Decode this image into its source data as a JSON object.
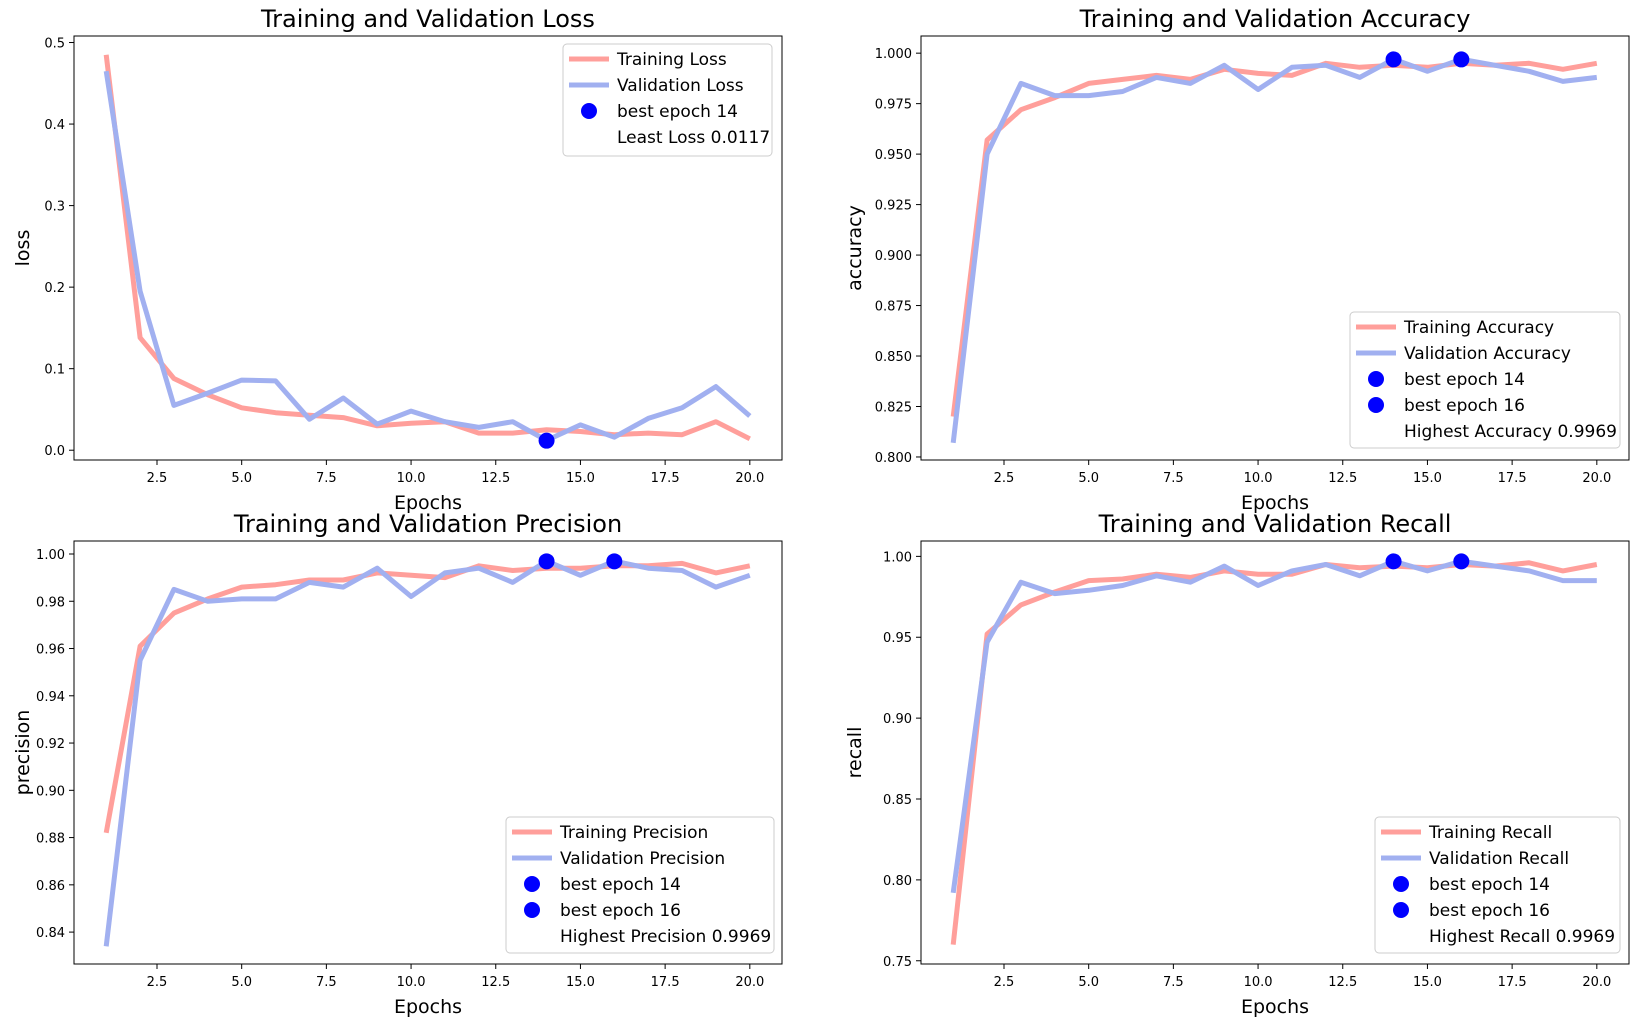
{
  "colors": {
    "training": "#ff9f9b",
    "validation": "#a1b0f0",
    "best": "#0000ff",
    "axes": "#000000"
  },
  "chart_data": [
    {
      "type": "line",
      "title": "Training and Validation Loss",
      "xlabel": "Epochs",
      "ylabel": "loss",
      "xlim": [
        0.05,
        20.95
      ],
      "ylim": [
        -0.012,
        0.508
      ],
      "xticks": [
        2.5,
        5.0,
        7.5,
        10.0,
        12.5,
        15.0,
        17.5,
        20.0
      ],
      "xtick_labels": [
        "2.5",
        "5.0",
        "7.5",
        "10.0",
        "12.5",
        "15.0",
        "17.5",
        "20.0"
      ],
      "yticks": [
        0.0,
        0.1,
        0.2,
        0.3,
        0.4,
        0.5
      ],
      "ytick_labels": [
        "0.0",
        "0.1",
        "0.2",
        "0.3",
        "0.4",
        "0.5"
      ],
      "x": [
        1,
        2,
        3,
        4,
        5,
        6,
        7,
        8,
        9,
        10,
        11,
        12,
        13,
        14,
        15,
        16,
        17,
        18,
        19,
        20
      ],
      "series": [
        {
          "name": "Training Loss",
          "values": [
            0.485,
            0.138,
            0.088,
            0.068,
            0.052,
            0.046,
            0.043,
            0.04,
            0.03,
            0.033,
            0.035,
            0.021,
            0.021,
            0.025,
            0.023,
            0.019,
            0.021,
            0.019,
            0.035,
            0.014
          ]
        },
        {
          "name": "Validation Loss",
          "values": [
            0.465,
            0.195,
            0.055,
            0.07,
            0.086,
            0.085,
            0.038,
            0.064,
            0.032,
            0.048,
            0.035,
            0.028,
            0.035,
            0.012,
            0.031,
            0.016,
            0.039,
            0.052,
            0.078,
            0.042
          ]
        }
      ],
      "points": [
        {
          "name": "best epoch 14",
          "x": 14,
          "y": 0.0117
        }
      ],
      "legend": {
        "placement": "top-right",
        "entries": [
          "Training Loss",
          "Validation Loss",
          "best epoch 14",
          "Least Loss 0.0117"
        ]
      }
    },
    {
      "type": "line",
      "title": "Training and Validation Accuracy",
      "xlabel": "Epochs",
      "ylabel": "accuracy",
      "xlim": [
        0.05,
        20.95
      ],
      "ylim": [
        0.7985,
        1.0085
      ],
      "xticks": [
        2.5,
        5.0,
        7.5,
        10.0,
        12.5,
        15.0,
        17.5,
        20.0
      ],
      "xtick_labels": [
        "2.5",
        "5.0",
        "7.5",
        "10.0",
        "12.5",
        "15.0",
        "17.5",
        "20.0"
      ],
      "yticks": [
        0.8,
        0.825,
        0.85,
        0.875,
        0.9,
        0.925,
        0.95,
        0.975,
        1.0
      ],
      "ytick_labels": [
        "0.800",
        "0.825",
        "0.850",
        "0.875",
        "0.900",
        "0.925",
        "0.950",
        "0.975",
        "1.000"
      ],
      "x": [
        1,
        2,
        3,
        4,
        5,
        6,
        7,
        8,
        9,
        10,
        11,
        12,
        13,
        14,
        15,
        16,
        17,
        18,
        19,
        20
      ],
      "series": [
        {
          "name": "Training Accuracy",
          "values": [
            0.82,
            0.957,
            0.972,
            0.978,
            0.985,
            0.987,
            0.989,
            0.987,
            0.992,
            0.99,
            0.989,
            0.995,
            0.993,
            0.994,
            0.993,
            0.995,
            0.994,
            0.995,
            0.992,
            0.995
          ]
        },
        {
          "name": "Validation Accuracy",
          "values": [
            0.807,
            0.95,
            0.985,
            0.979,
            0.979,
            0.981,
            0.988,
            0.985,
            0.994,
            0.982,
            0.993,
            0.994,
            0.988,
            0.997,
            0.991,
            0.997,
            0.994,
            0.991,
            0.986,
            0.988
          ]
        }
      ],
      "points": [
        {
          "name": "best epoch 14",
          "x": 14,
          "y": 0.9969
        },
        {
          "name": "best epoch 16",
          "x": 16,
          "y": 0.9969
        }
      ],
      "legend": {
        "placement": "lower-right",
        "entries": [
          "Training Accuracy",
          "Validation Accuracy",
          "best epoch 14",
          "best epoch 16",
          "Highest Accuracy 0.9969"
        ]
      }
    },
    {
      "type": "line",
      "title": "Training and Validation Precision",
      "xlabel": "Epochs",
      "ylabel": "precision",
      "xlim": [
        0.05,
        20.95
      ],
      "ylim": [
        0.8265,
        1.0055
      ],
      "xticks": [
        2.5,
        5.0,
        7.5,
        10.0,
        12.5,
        15.0,
        17.5,
        20.0
      ],
      "xtick_labels": [
        "2.5",
        "5.0",
        "7.5",
        "10.0",
        "12.5",
        "15.0",
        "17.5",
        "20.0"
      ],
      "yticks": [
        0.84,
        0.86,
        0.88,
        0.9,
        0.92,
        0.94,
        0.96,
        0.98,
        1.0
      ],
      "ytick_labels": [
        "0.84",
        "0.86",
        "0.88",
        "0.90",
        "0.92",
        "0.94",
        "0.96",
        "0.98",
        "1.00"
      ],
      "x": [
        1,
        2,
        3,
        4,
        5,
        6,
        7,
        8,
        9,
        10,
        11,
        12,
        13,
        14,
        15,
        16,
        17,
        18,
        19,
        20
      ],
      "series": [
        {
          "name": "Training Precision",
          "values": [
            0.882,
            0.961,
            0.975,
            0.981,
            0.986,
            0.987,
            0.989,
            0.989,
            0.992,
            0.991,
            0.99,
            0.995,
            0.993,
            0.994,
            0.994,
            0.995,
            0.995,
            0.996,
            0.992,
            0.995
          ]
        },
        {
          "name": "Validation Precision",
          "values": [
            0.834,
            0.955,
            0.985,
            0.98,
            0.981,
            0.981,
            0.988,
            0.986,
            0.994,
            0.982,
            0.992,
            0.994,
            0.988,
            0.997,
            0.991,
            0.997,
            0.994,
            0.993,
            0.986,
            0.991
          ]
        }
      ],
      "points": [
        {
          "name": "best epoch 14",
          "x": 14,
          "y": 0.9969
        },
        {
          "name": "best epoch 16",
          "x": 16,
          "y": 0.9969
        }
      ],
      "legend": {
        "placement": "lower-right",
        "entries": [
          "Training Precision",
          "Validation Precision",
          "best epoch 14",
          "best epoch 16",
          "Highest Precision 0.9969"
        ]
      }
    },
    {
      "type": "line",
      "title": "Training and Validation Recall",
      "xlabel": "Epochs",
      "ylabel": "recall",
      "xlim": [
        0.05,
        20.95
      ],
      "ylim": [
        0.748,
        1.0095
      ],
      "xticks": [
        2.5,
        5.0,
        7.5,
        10.0,
        12.5,
        15.0,
        17.5,
        20.0
      ],
      "xtick_labels": [
        "2.5",
        "5.0",
        "7.5",
        "10.0",
        "12.5",
        "15.0",
        "17.5",
        "20.0"
      ],
      "yticks": [
        0.75,
        0.8,
        0.85,
        0.9,
        0.95,
        1.0
      ],
      "ytick_labels": [
        "0.75",
        "0.80",
        "0.85",
        "0.90",
        "0.95",
        "1.00"
      ],
      "x": [
        1,
        2,
        3,
        4,
        5,
        6,
        7,
        8,
        9,
        10,
        11,
        12,
        13,
        14,
        15,
        16,
        17,
        18,
        19,
        20
      ],
      "series": [
        {
          "name": "Training Recall",
          "values": [
            0.76,
            0.952,
            0.97,
            0.978,
            0.985,
            0.986,
            0.989,
            0.987,
            0.991,
            0.989,
            0.989,
            0.995,
            0.993,
            0.994,
            0.993,
            0.995,
            0.994,
            0.996,
            0.991,
            0.995
          ]
        },
        {
          "name": "Validation Recall",
          "values": [
            0.792,
            0.947,
            0.984,
            0.977,
            0.979,
            0.982,
            0.988,
            0.984,
            0.994,
            0.982,
            0.991,
            0.995,
            0.988,
            0.997,
            0.991,
            0.997,
            0.994,
            0.991,
            0.985,
            0.985
          ]
        }
      ],
      "points": [
        {
          "name": "best epoch 14",
          "x": 14,
          "y": 0.9969
        },
        {
          "name": "best epoch 16",
          "x": 16,
          "y": 0.9969
        }
      ],
      "legend": {
        "placement": "lower-right",
        "entries": [
          "Training Recall",
          "Validation Recall",
          "best epoch 14",
          "best epoch 16",
          "Highest Recall 0.9969"
        ]
      }
    }
  ]
}
